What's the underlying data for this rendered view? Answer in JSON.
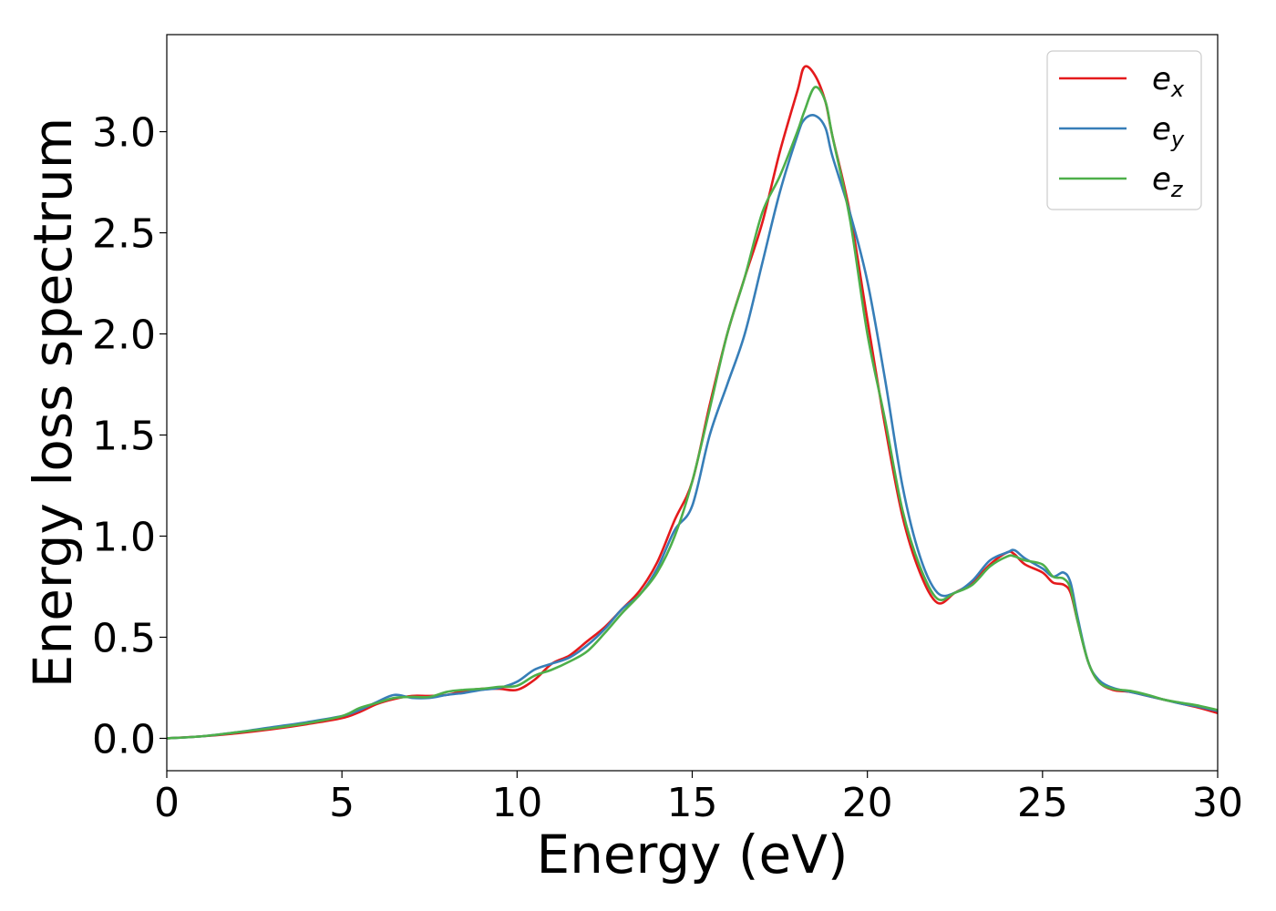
{
  "chart_data": {
    "type": "line",
    "title": "",
    "xlabel": "Energy (eV)",
    "ylabel": "Energy loss spectrum",
    "xlim": [
      0,
      30
    ],
    "ylim": [
      -0.16,
      3.48
    ],
    "xticks": [
      0,
      5,
      10,
      15,
      20,
      25,
      30
    ],
    "xtick_labels": [
      "0",
      "5",
      "10",
      "15",
      "20",
      "25",
      "30"
    ],
    "yticks": [
      0.0,
      0.5,
      1.0,
      1.5,
      2.0,
      2.5,
      3.0
    ],
    "ytick_labels": [
      "0.0",
      "0.5",
      "1.0",
      "1.5",
      "2.0",
      "2.5",
      "3.0"
    ],
    "grid": false,
    "legend_position": "top-right",
    "series": [
      {
        "name": "e",
        "subscript": "x",
        "color": "#e41a1c",
        "x": [
          0,
          1,
          2,
          3,
          4,
          5,
          5.5,
          6,
          6.5,
          7,
          7.5,
          8,
          8.5,
          9,
          9.5,
          10,
          10.5,
          11,
          11.5,
          12,
          12.5,
          13,
          13.5,
          14,
          14.5,
          15,
          15.5,
          16,
          16.5,
          17,
          17.5,
          18,
          18.2,
          18.5,
          18.8,
          19,
          19.5,
          20,
          20.5,
          21,
          21.5,
          22,
          22.5,
          23,
          23.5,
          24,
          24.2,
          24.5,
          25,
          25.3,
          25.6,
          25.8,
          26,
          26.3,
          26.6,
          27,
          27.5,
          28,
          28.5,
          29,
          29.5,
          30
        ],
        "y": [
          0,
          0.01,
          0.025,
          0.045,
          0.07,
          0.1,
          0.13,
          0.17,
          0.195,
          0.21,
          0.21,
          0.215,
          0.235,
          0.245,
          0.245,
          0.24,
          0.29,
          0.37,
          0.41,
          0.48,
          0.55,
          0.64,
          0.73,
          0.87,
          1.08,
          1.27,
          1.65,
          2.0,
          2.28,
          2.55,
          2.9,
          3.2,
          3.32,
          3.28,
          3.15,
          2.98,
          2.6,
          2.07,
          1.55,
          1.1,
          0.82,
          0.67,
          0.72,
          0.77,
          0.86,
          0.92,
          0.91,
          0.86,
          0.82,
          0.77,
          0.76,
          0.72,
          0.58,
          0.38,
          0.28,
          0.24,
          0.23,
          0.21,
          0.19,
          0.17,
          0.15,
          0.125
        ]
      },
      {
        "name": "e",
        "subscript": "y",
        "color": "#377eb8",
        "x": [
          0,
          1,
          2,
          3,
          4,
          5,
          5.5,
          6,
          6.5,
          7,
          7.5,
          8,
          8.5,
          9,
          9.5,
          10,
          10.5,
          11,
          11.5,
          12,
          12.5,
          13,
          13.5,
          14,
          14.5,
          15,
          15.5,
          16,
          16.5,
          17,
          17.5,
          18,
          18.2,
          18.5,
          18.8,
          19,
          19.5,
          20,
          20.5,
          21,
          21.5,
          22,
          22.5,
          23,
          23.5,
          24,
          24.2,
          24.5,
          25,
          25.3,
          25.6,
          25.8,
          26,
          26.3,
          26.6,
          27,
          27.5,
          28,
          28.5,
          29,
          29.5,
          30
        ],
        "y": [
          0,
          0.01,
          0.03,
          0.055,
          0.08,
          0.11,
          0.14,
          0.18,
          0.215,
          0.2,
          0.2,
          0.215,
          0.225,
          0.24,
          0.25,
          0.28,
          0.34,
          0.37,
          0.4,
          0.46,
          0.54,
          0.64,
          0.71,
          0.84,
          1.03,
          1.15,
          1.5,
          1.75,
          2.0,
          2.35,
          2.7,
          2.98,
          3.06,
          3.08,
          3.02,
          2.88,
          2.6,
          2.26,
          1.78,
          1.25,
          0.9,
          0.72,
          0.72,
          0.78,
          0.88,
          0.92,
          0.93,
          0.89,
          0.84,
          0.8,
          0.82,
          0.77,
          0.6,
          0.38,
          0.29,
          0.25,
          0.23,
          0.21,
          0.19,
          0.17,
          0.155,
          0.135
        ]
      },
      {
        "name": "e",
        "subscript": "z",
        "color": "#4daf4a",
        "x": [
          0,
          1,
          2,
          3,
          4,
          5,
          5.5,
          6,
          6.5,
          7,
          7.5,
          8,
          8.5,
          9,
          9.5,
          10,
          10.5,
          11,
          11.5,
          12,
          12.5,
          13,
          13.5,
          14,
          14.5,
          15,
          15.5,
          16,
          16.5,
          17,
          17.5,
          18,
          18.2,
          18.5,
          18.8,
          19,
          19.5,
          20,
          20.5,
          21,
          21.5,
          22,
          22.5,
          23,
          23.5,
          24,
          24.2,
          24.5,
          25,
          25.3,
          25.6,
          25.8,
          26,
          26.3,
          26.6,
          27,
          27.5,
          28,
          28.5,
          29,
          29.5,
          30
        ],
        "y": [
          0,
          0.01,
          0.03,
          0.05,
          0.075,
          0.11,
          0.15,
          0.175,
          0.2,
          0.205,
          0.205,
          0.23,
          0.24,
          0.245,
          0.255,
          0.26,
          0.31,
          0.34,
          0.38,
          0.43,
          0.52,
          0.62,
          0.71,
          0.82,
          1.0,
          1.27,
          1.63,
          2.0,
          2.28,
          2.6,
          2.78,
          3.0,
          3.1,
          3.22,
          3.15,
          2.98,
          2.57,
          2.0,
          1.58,
          1.13,
          0.85,
          0.69,
          0.72,
          0.76,
          0.85,
          0.9,
          0.9,
          0.88,
          0.86,
          0.8,
          0.79,
          0.74,
          0.58,
          0.38,
          0.28,
          0.245,
          0.235,
          0.215,
          0.19,
          0.175,
          0.16,
          0.14
        ]
      }
    ]
  }
}
